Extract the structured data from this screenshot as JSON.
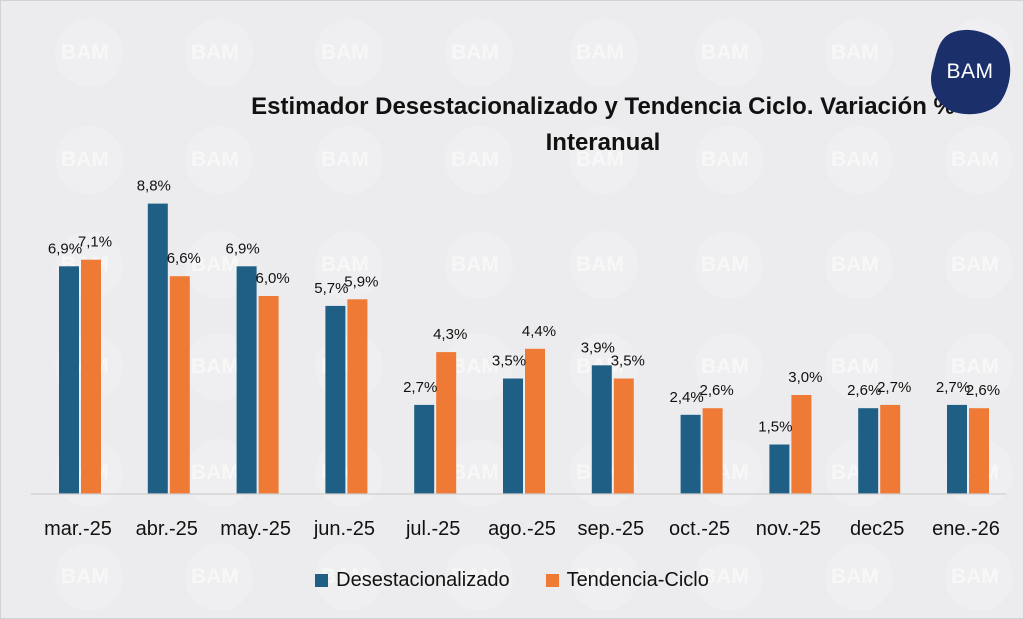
{
  "brand": {
    "logo_text": "BAM",
    "watermark_text": "BAM"
  },
  "colors": {
    "series1": "#1f5f85",
    "series2": "#ee7a35",
    "logo": "#1b2f6b",
    "background": "#ececee"
  },
  "chart_data": {
    "type": "bar",
    "title": "Estimador Desestacionalizado y Tendencia Ciclo. Variación % Interanual",
    "title_lines": [
      "Estimador Desestacionalizado y Tendencia Ciclo. Variación %",
      "Interanual"
    ],
    "categories": [
      "mar.-25",
      "abr.-25",
      "may.-25",
      "jun.-25",
      "jul.-25",
      "ago.-25",
      "sep.-25",
      "oct.-25",
      "nov.-25",
      "dec25",
      "ene.-26"
    ],
    "series": [
      {
        "name": "Desestacionalizado",
        "values": [
          6.9,
          8.8,
          6.9,
          5.7,
          2.7,
          3.5,
          3.9,
          2.4,
          1.5,
          2.6,
          2.7
        ],
        "labels": [
          "6,9%",
          "8,8%",
          "6,9%",
          "5,7%",
          "2,7%",
          "3,5%",
          "3,9%",
          "2,4%",
          "1,5%",
          "2,6%",
          "2,7%"
        ]
      },
      {
        "name": "Tendencia-Ciclo",
        "values": [
          7.1,
          6.6,
          6.0,
          5.9,
          4.3,
          4.4,
          3.5,
          2.6,
          3.0,
          2.7,
          2.6
        ],
        "labels": [
          "7,1%",
          "6,6%",
          "6,0%",
          "5,9%",
          "4,3%",
          "4,4%",
          "3,5%",
          "2,6%",
          "3,0%",
          "2,7%",
          "2,6%"
        ]
      }
    ],
    "xlabel": "",
    "ylabel": "",
    "ylim": [
      0,
      10
    ],
    "grid": false,
    "legend": "bottom"
  }
}
